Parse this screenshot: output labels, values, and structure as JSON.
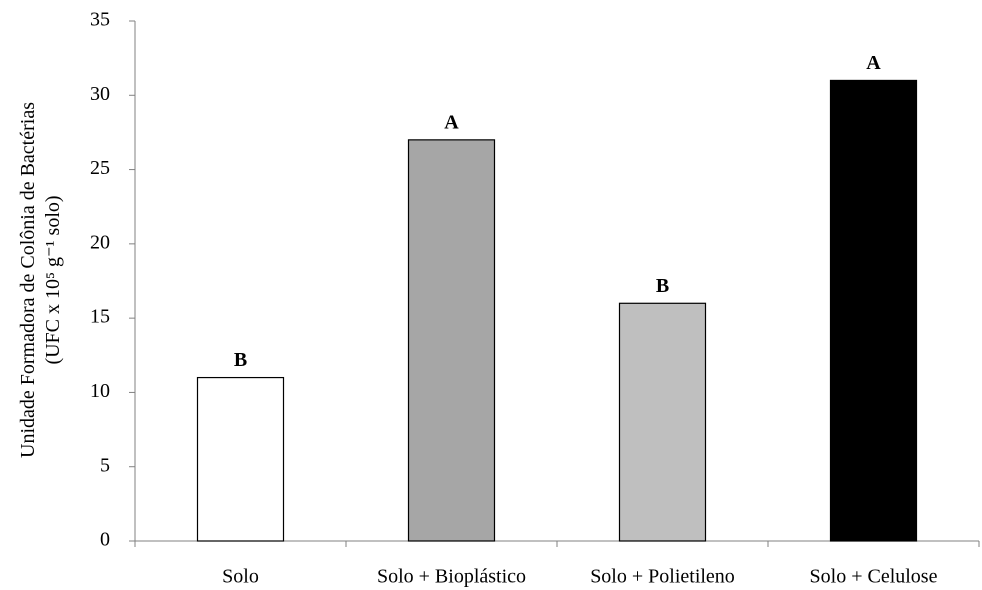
{
  "chart_data": {
    "type": "bar",
    "categories": [
      "Solo",
      "Solo + Bioplástico",
      "Solo + Polietileno",
      "Solo + Celulose"
    ],
    "values": [
      11,
      27,
      16,
      31
    ],
    "colors": [
      "#ffffff",
      "#a6a6a6",
      "#bfbfbf",
      "#000000"
    ],
    "annotations": [
      "B",
      "A",
      "B",
      "A"
    ],
    "ylabel": [
      "Unidade Formadora de Colônia de Bactérias",
      "(UFC x 10⁵ g⁻¹ solo)"
    ],
    "ylim": [
      0,
      35
    ],
    "yticks": [
      0,
      5,
      10,
      15,
      20,
      25,
      30,
      35
    ],
    "grid": false
  }
}
